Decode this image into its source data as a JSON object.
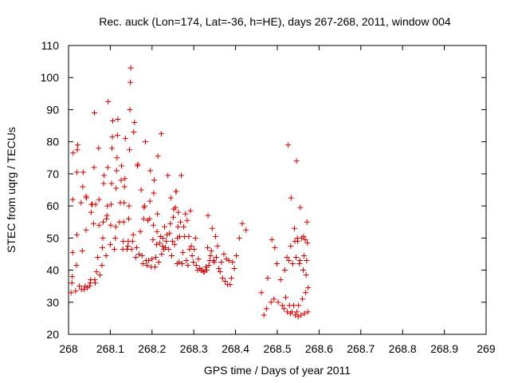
{
  "chart_data": {
    "type": "scatter",
    "title": "Rec. auck (Lon=174, Lat=-36, h=HE), days 267-268, 2011, window 004",
    "xlabel": "GPS time / Days of year 2011",
    "ylabel": "STEC from uqrg / TECUs",
    "xlim": [
      268,
      269
    ],
    "ylim": [
      20,
      110
    ],
    "xticks": [
      "268",
      "268.1",
      "268.2",
      "268.3",
      "268.4",
      "268.5",
      "268.6",
      "268.7",
      "268.8",
      "268.9",
      "269"
    ],
    "yticks": [
      "20",
      "30",
      "40",
      "50",
      "60",
      "70",
      "80",
      "90",
      "100",
      "110"
    ],
    "grid": false,
    "marker": "+",
    "marker_color": "#cc0000",
    "points": [
      [
        268.006,
        33
      ],
      [
        268.008,
        36
      ],
      [
        268.009,
        38
      ],
      [
        268.01,
        45.5
      ],
      [
        268.01,
        62
      ],
      [
        268.011,
        76.5
      ],
      [
        268.017,
        33.5
      ],
      [
        268.019,
        41.5
      ],
      [
        268.02,
        51
      ],
      [
        268.02,
        70.5
      ],
      [
        268.021,
        77.5
      ],
      [
        268.022,
        79
      ],
      [
        268.026,
        35
      ],
      [
        268.03,
        61
      ],
      [
        268.031,
        34
      ],
      [
        268.033,
        46
      ],
      [
        268.034,
        66
      ],
      [
        268.035,
        70.5
      ],
      [
        268.037,
        34
      ],
      [
        268.04,
        35
      ],
      [
        268.042,
        52.5
      ],
      [
        268.042,
        63
      ],
      [
        268.043,
        62.5
      ],
      [
        268.045,
        34.5
      ],
      [
        268.05,
        35
      ],
      [
        268.052,
        36
      ],
      [
        268.053,
        37
      ],
      [
        268.054,
        58
      ],
      [
        268.055,
        60.5
      ],
      [
        268.057,
        60.5
      ],
      [
        268.06,
        54.5
      ],
      [
        268.061,
        72
      ],
      [
        268.062,
        89
      ],
      [
        268.063,
        37
      ],
      [
        268.064,
        36
      ],
      [
        268.065,
        60.5
      ],
      [
        268.067,
        39.5
      ],
      [
        268.07,
        44
      ],
      [
        268.072,
        78
      ],
      [
        268.073,
        54
      ],
      [
        268.073,
        62
      ],
      [
        268.075,
        38.5
      ],
      [
        268.08,
        41.5
      ],
      [
        268.081,
        47
      ],
      [
        268.082,
        50
      ],
      [
        268.083,
        55
      ],
      [
        268.084,
        67
      ],
      [
        268.085,
        69.5
      ],
      [
        268.09,
        44.5
      ],
      [
        268.091,
        56
      ],
      [
        268.092,
        57
      ],
      [
        268.093,
        60
      ],
      [
        268.094,
        72
      ],
      [
        268.095,
        92.5
      ],
      [
        268.1,
        48
      ],
      [
        268.101,
        54
      ],
      [
        268.102,
        60.5
      ],
      [
        268.103,
        67
      ],
      [
        268.104,
        78
      ],
      [
        268.105,
        81.5
      ],
      [
        268.106,
        86.5
      ],
      [
        268.11,
        46.5
      ],
      [
        268.112,
        50
      ],
      [
        268.113,
        53.5
      ],
      [
        268.114,
        65.5
      ],
      [
        268.115,
        71
      ],
      [
        268.116,
        75
      ],
      [
        268.117,
        82
      ],
      [
        268.118,
        87
      ],
      [
        268.122,
        55
      ],
      [
        268.124,
        61
      ],
      [
        268.126,
        68
      ],
      [
        268.127,
        72.5
      ],
      [
        268.13,
        46.5
      ],
      [
        268.131,
        49
      ],
      [
        268.132,
        55
      ],
      [
        268.133,
        61
      ],
      [
        268.134,
        66
      ],
      [
        268.135,
        68.5
      ],
      [
        268.136,
        81
      ],
      [
        268.14,
        46.5
      ],
      [
        268.142,
        47.5
      ],
      [
        268.143,
        49
      ],
      [
        268.144,
        56
      ],
      [
        268.145,
        60
      ],
      [
        268.146,
        77.5
      ],
      [
        268.147,
        90
      ],
      [
        268.148,
        98.5
      ],
      [
        268.149,
        103
      ],
      [
        268.151,
        46.5
      ],
      [
        268.153,
        49
      ],
      [
        268.155,
        51
      ],
      [
        268.156,
        83
      ],
      [
        268.158,
        86
      ],
      [
        268.161,
        44
      ],
      [
        268.163,
        47
      ],
      [
        268.165,
        72.5
      ],
      [
        268.166,
        73
      ],
      [
        268.169,
        45
      ],
      [
        268.172,
        52
      ],
      [
        268.174,
        65
      ],
      [
        268.176,
        44.5
      ],
      [
        268.178,
        42
      ],
      [
        268.18,
        56
      ],
      [
        268.181,
        59.5
      ],
      [
        268.182,
        60
      ],
      [
        268.184,
        80
      ],
      [
        268.186,
        43
      ],
      [
        268.188,
        41.5
      ],
      [
        268.19,
        55.5
      ],
      [
        268.192,
        43
      ],
      [
        268.194,
        56
      ],
      [
        268.195,
        61.5
      ],
      [
        268.196,
        71
      ],
      [
        268.198,
        41
      ],
      [
        268.2,
        43.5
      ],
      [
        268.202,
        49.5
      ],
      [
        268.203,
        54
      ],
      [
        268.204,
        64
      ],
      [
        268.205,
        68
      ],
      [
        268.207,
        41
      ],
      [
        268.209,
        44
      ],
      [
        268.211,
        48
      ],
      [
        268.212,
        52
      ],
      [
        268.213,
        57.5
      ],
      [
        268.214,
        75.5
      ],
      [
        268.216,
        42.5
      ],
      [
        268.218,
        48.5
      ],
      [
        268.22,
        50.5
      ],
      [
        268.222,
        82.5
      ],
      [
        268.223,
        45
      ],
      [
        268.225,
        47.5
      ],
      [
        268.226,
        50
      ],
      [
        268.228,
        46.5
      ],
      [
        268.23,
        53.5
      ],
      [
        268.232,
        47
      ],
      [
        268.234,
        49
      ],
      [
        268.236,
        51
      ],
      [
        268.238,
        69.5
      ],
      [
        268.24,
        46.5
      ],
      [
        268.242,
        51.5
      ],
      [
        268.244,
        54.5
      ],
      [
        268.245,
        62.5
      ],
      [
        268.247,
        44.5
      ],
      [
        268.249,
        49
      ],
      [
        268.251,
        56.5
      ],
      [
        268.252,
        59
      ],
      [
        268.254,
        48
      ],
      [
        268.256,
        59.5
      ],
      [
        268.257,
        64.5
      ],
      [
        268.258,
        64.5
      ],
      [
        268.26,
        42
      ],
      [
        268.261,
        50
      ],
      [
        268.262,
        53.5
      ],
      [
        268.263,
        58
      ],
      [
        268.265,
        42.5
      ],
      [
        268.266,
        50.5
      ],
      [
        268.268,
        55
      ],
      [
        268.27,
        69.5
      ],
      [
        268.272,
        42
      ],
      [
        268.274,
        45.5
      ],
      [
        268.276,
        53.5
      ],
      [
        268.278,
        50.5
      ],
      [
        268.28,
        57.5
      ],
      [
        268.282,
        43
      ],
      [
        268.284,
        55.5
      ],
      [
        268.286,
        41.5
      ],
      [
        268.288,
        50.5
      ],
      [
        268.29,
        46.5
      ],
      [
        268.292,
        58.5
      ],
      [
        268.294,
        47.5
      ],
      [
        268.296,
        44.5
      ],
      [
        268.299,
        42.5
      ],
      [
        268.301,
        46.5
      ],
      [
        268.304,
        50
      ],
      [
        268.306,
        41.5
      ],
      [
        268.309,
        40
      ],
      [
        268.311,
        43.5
      ],
      [
        268.314,
        40.5
      ],
      [
        268.317,
        40
      ],
      [
        268.32,
        40
      ],
      [
        268.323,
        39.5
      ],
      [
        268.326,
        39.5
      ],
      [
        268.329,
        41
      ],
      [
        268.331,
        40
      ],
      [
        268.333,
        47
      ],
      [
        268.334,
        57
      ],
      [
        268.336,
        41.5
      ],
      [
        268.338,
        43
      ],
      [
        268.34,
        44.5
      ],
      [
        268.342,
        46
      ],
      [
        268.344,
        53
      ],
      [
        268.347,
        43
      ],
      [
        268.349,
        42.5
      ],
      [
        268.352,
        50.5
      ],
      [
        268.354,
        44
      ],
      [
        268.357,
        47.5
      ],
      [
        268.36,
        40.5
      ],
      [
        268.363,
        39.5
      ],
      [
        268.366,
        42.5
      ],
      [
        268.369,
        37.5
      ],
      [
        268.372,
        45
      ],
      [
        268.375,
        36.5
      ],
      [
        268.378,
        43.5
      ],
      [
        268.381,
        35.5
      ],
      [
        268.384,
        43
      ],
      [
        268.387,
        35.5
      ],
      [
        268.39,
        37.5
      ],
      [
        268.393,
        42.5
      ],
      [
        268.397,
        40.5
      ],
      [
        268.402,
        44.5
      ],
      [
        268.409,
        50
      ],
      [
        268.416,
        54.5
      ],
      [
        268.425,
        52.5
      ],
      [
        268.462,
        33
      ],
      [
        268.468,
        26
      ],
      [
        268.474,
        28
      ],
      [
        268.477,
        37.5
      ],
      [
        268.485,
        30
      ],
      [
        268.487,
        49.5
      ],
      [
        268.492,
        31
      ],
      [
        268.494,
        47
      ],
      [
        268.499,
        42
      ],
      [
        268.502,
        30
      ],
      [
        268.508,
        37
      ],
      [
        268.512,
        29
      ],
      [
        268.516,
        28
      ],
      [
        268.518,
        40
      ],
      [
        268.52,
        31.5
      ],
      [
        268.523,
        44
      ],
      [
        268.524,
        27
      ],
      [
        268.526,
        79
      ],
      [
        268.528,
        43
      ],
      [
        268.529,
        29
      ],
      [
        268.531,
        26.5
      ],
      [
        268.532,
        47.5
      ],
      [
        268.533,
        62.5
      ],
      [
        268.535,
        27
      ],
      [
        268.537,
        42
      ],
      [
        268.539,
        29
      ],
      [
        268.541,
        53
      ],
      [
        268.542,
        49
      ],
      [
        268.543,
        26
      ],
      [
        268.545,
        44
      ],
      [
        268.546,
        74
      ],
      [
        268.547,
        27
      ],
      [
        268.548,
        50
      ],
      [
        268.549,
        49
      ],
      [
        268.55,
        25.5
      ],
      [
        268.551,
        29
      ],
      [
        268.553,
        42
      ],
      [
        268.554,
        43
      ],
      [
        268.555,
        59.5
      ],
      [
        268.557,
        26
      ],
      [
        268.558,
        50
      ],
      [
        268.56,
        31
      ],
      [
        268.562,
        40
      ],
      [
        268.563,
        50.5
      ],
      [
        268.564,
        44.5
      ],
      [
        268.565,
        26.5
      ],
      [
        268.567,
        49.5
      ],
      [
        268.568,
        33
      ],
      [
        268.569,
        38.5
      ],
      [
        268.57,
        43
      ],
      [
        268.571,
        55
      ],
      [
        268.572,
        48.5
      ],
      [
        268.573,
        27
      ],
      [
        268.574,
        34.5
      ]
    ]
  }
}
